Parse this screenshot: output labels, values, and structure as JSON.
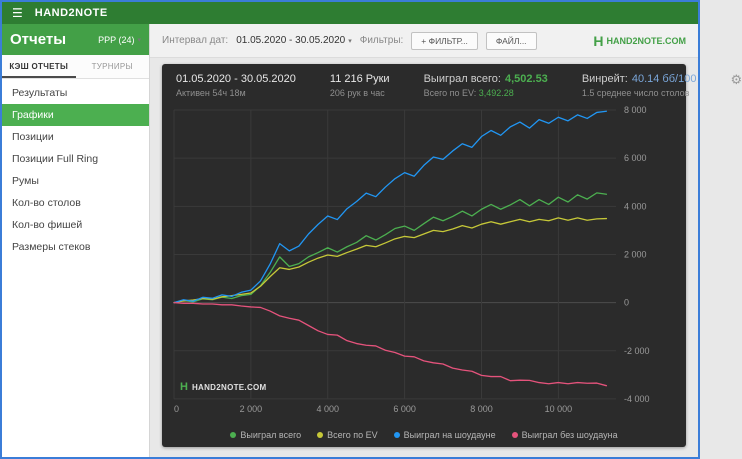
{
  "window": {
    "title": "HAND2NOTE"
  },
  "sidebar": {
    "title": "Отчеты",
    "profile": "PPP (24)",
    "tabs": [
      {
        "label": "КЭШ ОТЧЕТЫ",
        "active": true
      },
      {
        "label": "ТУРНИРЫ",
        "active": false
      }
    ],
    "items": [
      {
        "label": "Результаты",
        "active": false
      },
      {
        "label": "Графики",
        "active": true
      },
      {
        "label": "Позиции",
        "active": false
      },
      {
        "label": "Позиции Full Ring",
        "active": false
      },
      {
        "label": "Румы",
        "active": false
      },
      {
        "label": "Кол-во столов",
        "active": false
      },
      {
        "label": "Кол-во фишей",
        "active": false
      },
      {
        "label": "Размеры стеков",
        "active": false
      }
    ]
  },
  "toolbar": {
    "interval_label": "Интервал дат:",
    "interval_value": "01.05.2020 - 30.05.2020",
    "filters_label": "Фильтры:",
    "filter_button": "+ ФИЛЬТР...",
    "file_button": "ФАЙЛ...",
    "brand_mark": "H",
    "brand": "HAND2NOTE.COM"
  },
  "stats": {
    "date_range": "01.05.2020 - 30.05.2020",
    "active_time": "Активен 54ч 18м",
    "hands": "11 216 Руки",
    "hands_per_hour": "206 рук в час",
    "won_total_label": "Выиграл всего:",
    "won_total_value": "4,502.53",
    "ev_total_label": "Всего по EV:",
    "ev_total_value": "3,492.28",
    "winrate_label": "Винрейт:",
    "winrate_value": "40.14 бб/100",
    "avg_tables": "1.5 среднее число столов"
  },
  "watermark_mark": "H",
  "watermark": "HAND2NOTE.COM",
  "colors": {
    "topbar_green": "#2e7d32",
    "accent_green": "#43a047",
    "selected_green": "#4caf50",
    "panel_bg": "#2b2b2b",
    "value_green": "#4caf50",
    "winrate_blue": "#7aa6d9",
    "window_border_blue": "#3b7dd8"
  },
  "chart_data": {
    "type": "line",
    "title": "",
    "xlabel": "",
    "ylabel": "",
    "grid": true,
    "legend_position": "bottom",
    "xlim": [
      0,
      11500
    ],
    "ylim": [
      -4000,
      8000
    ],
    "x": [
      0,
      250,
      500,
      750,
      1000,
      1250,
      1500,
      1750,
      2000,
      2250,
      2500,
      2750,
      3000,
      3250,
      3500,
      3750,
      4000,
      4250,
      4500,
      4750,
      5000,
      5250,
      5500,
      5750,
      6000,
      6250,
      6500,
      6750,
      7000,
      7250,
      7500,
      7750,
      8000,
      8250,
      8500,
      8750,
      9000,
      9250,
      9500,
      9750,
      10000,
      10250,
      10500,
      10750,
      11000,
      11250
    ],
    "series": [
      {
        "name": "Выиграл всего",
        "color": "#4caf50",
        "values": [
          0,
          90,
          30,
          160,
          120,
          230,
          170,
          290,
          340,
          700,
          1250,
          1900,
          1500,
          1620,
          1900,
          2080,
          2280,
          2100,
          2320,
          2500,
          2780,
          2600,
          2820,
          3080,
          3180,
          3000,
          3280,
          3550,
          3400,
          3580,
          3800,
          3600,
          3880,
          4080,
          3880,
          4060,
          4280,
          4020,
          4280,
          4080,
          4380,
          4180,
          4480,
          4300,
          4560,
          4502
        ]
      },
      {
        "name": "Всего по EV",
        "color": "#c6c838",
        "values": [
          0,
          70,
          110,
          170,
          140,
          240,
          290,
          340,
          400,
          680,
          1080,
          1450,
          1380,
          1480,
          1680,
          1850,
          1980,
          1920,
          2080,
          2220,
          2380,
          2320,
          2480,
          2650,
          2750,
          2700,
          2850,
          3000,
          2950,
          3060,
          3200,
          3100,
          3260,
          3360,
          3260,
          3360,
          3460,
          3360,
          3460,
          3400,
          3520,
          3420,
          3520,
          3420,
          3480,
          3492
        ]
      },
      {
        "name": "Выиграл на шоудауне",
        "color": "#2196f3",
        "values": [
          0,
          120,
          60,
          220,
          180,
          320,
          260,
          430,
          520,
          900,
          1600,
          2450,
          2150,
          2350,
          2850,
          3250,
          3600,
          3450,
          3900,
          4200,
          4550,
          4400,
          4800,
          5150,
          5400,
          5250,
          5700,
          6050,
          5950,
          6300,
          6600,
          6450,
          6900,
          7150,
          6950,
          7300,
          7500,
          7250,
          7600,
          7450,
          7700,
          7550,
          7800,
          7650,
          7900,
          7950
        ]
      },
      {
        "name": "Выиграл без шоудауна",
        "color": "#e5537c",
        "values": [
          0,
          -30,
          -30,
          -60,
          -60,
          -90,
          -90,
          -140,
          -180,
          -200,
          -350,
          -550,
          -650,
          -730,
          -950,
          -1170,
          -1320,
          -1350,
          -1580,
          -1700,
          -1770,
          -1800,
          -1980,
          -2070,
          -2220,
          -2250,
          -2420,
          -2500,
          -2550,
          -2720,
          -2800,
          -2850,
          -3020,
          -3070,
          -3070,
          -3240,
          -3220,
          -3230,
          -3320,
          -3370,
          -3320,
          -3370,
          -3320,
          -3350,
          -3340,
          -3448
        ]
      }
    ],
    "x_ticks": [
      {
        "v": 0,
        "label": "0"
      },
      {
        "v": 2000,
        "label": "2 000"
      },
      {
        "v": 4000,
        "label": "4 000"
      },
      {
        "v": 6000,
        "label": "6 000"
      },
      {
        "v": 8000,
        "label": "8 000"
      },
      {
        "v": 10000,
        "label": "10 000"
      }
    ],
    "y_ticks": [
      {
        "v": 8000,
        "label": "8 000"
      },
      {
        "v": 6000,
        "label": "6 000"
      },
      {
        "v": 4000,
        "label": "4 000"
      },
      {
        "v": 2000,
        "label": "2 000"
      },
      {
        "v": 0,
        "label": "0"
      },
      {
        "v": -2000,
        "label": "-2 000"
      },
      {
        "v": -4000,
        "label": "-4 000"
      }
    ]
  }
}
